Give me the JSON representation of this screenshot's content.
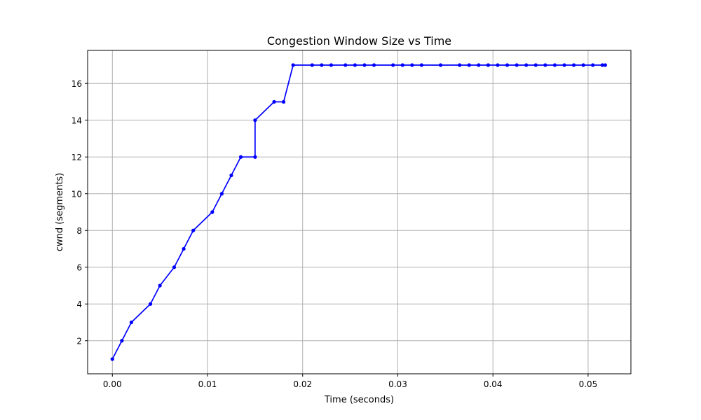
{
  "chart_data": {
    "type": "line",
    "title": "Congestion Window Size vs Time",
    "xlabel": "Time (seconds)",
    "ylabel": "cwnd (segments)",
    "xlim": [
      -0.0026,
      0.0545
    ],
    "ylim": [
      0.2,
      17.8
    ],
    "xticks": [
      0.0,
      0.01,
      0.02,
      0.03,
      0.04,
      0.05
    ],
    "xtick_labels": [
      "0.00",
      "0.01",
      "0.02",
      "0.03",
      "0.04",
      "0.05"
    ],
    "yticks": [
      2,
      4,
      6,
      8,
      10,
      12,
      14,
      16
    ],
    "ytick_labels": [
      "2",
      "4",
      "6",
      "8",
      "10",
      "12",
      "14",
      "16"
    ],
    "grid": true,
    "series": [
      {
        "color": "#0000ff",
        "marker": "circle",
        "points": [
          [
            0.0,
            1
          ],
          [
            0.001,
            2
          ],
          [
            0.002,
            3
          ],
          [
            0.004,
            4
          ],
          [
            0.005,
            5
          ],
          [
            0.0065,
            6
          ],
          [
            0.0075,
            7
          ],
          [
            0.0085,
            8
          ],
          [
            0.0105,
            9
          ],
          [
            0.0115,
            10
          ],
          [
            0.0125,
            11
          ],
          [
            0.0135,
            12
          ],
          [
            0.015,
            12
          ],
          [
            0.015,
            14
          ],
          [
            0.017,
            15
          ],
          [
            0.018,
            15
          ],
          [
            0.019,
            17
          ],
          [
            0.021,
            17
          ],
          [
            0.022,
            17
          ],
          [
            0.023,
            17
          ],
          [
            0.0245,
            17
          ],
          [
            0.0255,
            17
          ],
          [
            0.0265,
            17
          ],
          [
            0.0275,
            17
          ],
          [
            0.0295,
            17
          ],
          [
            0.0305,
            17
          ],
          [
            0.0315,
            17
          ],
          [
            0.0325,
            17
          ],
          [
            0.0345,
            17
          ],
          [
            0.0365,
            17
          ],
          [
            0.0375,
            17
          ],
          [
            0.0385,
            17
          ],
          [
            0.0395,
            17
          ],
          [
            0.0405,
            17
          ],
          [
            0.0415,
            17
          ],
          [
            0.0425,
            17
          ],
          [
            0.0435,
            17
          ],
          [
            0.0445,
            17
          ],
          [
            0.0455,
            17
          ],
          [
            0.0465,
            17
          ],
          [
            0.0475,
            17
          ],
          [
            0.0485,
            17
          ],
          [
            0.0495,
            17
          ],
          [
            0.0505,
            17
          ],
          [
            0.0515,
            17
          ],
          [
            0.0518,
            17
          ]
        ]
      }
    ]
  }
}
